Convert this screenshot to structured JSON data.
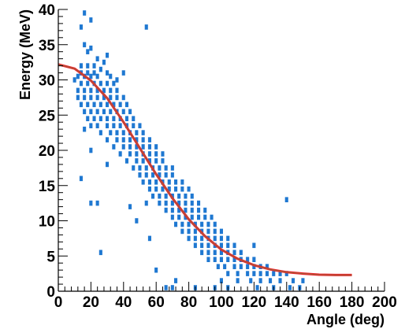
{
  "chart_data": {
    "type": "scatter",
    "title": "",
    "xlabel": "Angle (deg)",
    "ylabel": "Energy (MeV)",
    "xlim": [
      0,
      200
    ],
    "ylim": [
      0,
      40
    ],
    "x_ticks": [
      0,
      20,
      40,
      60,
      80,
      100,
      120,
      140,
      160,
      180,
      200
    ],
    "y_ticks": [
      0,
      5,
      10,
      15,
      20,
      25,
      30,
      35,
      40
    ],
    "grid": false,
    "legend": "none",
    "colors": {
      "points": "#1f78d1",
      "fit": "#e8202a",
      "fit_inner": "#3fbf4f",
      "axis": "#000000"
    },
    "bin_size": [
      2,
      0.4
    ],
    "fit_curve": {
      "name": "",
      "x": [
        0,
        10,
        20,
        30,
        40,
        50,
        60,
        70,
        80,
        90,
        100,
        110,
        120,
        130,
        140,
        150,
        160,
        170,
        180
      ],
      "y": [
        32.2,
        31.6,
        29.9,
        27.4,
        24.0,
        20.3,
        16.6,
        13.2,
        10.2,
        7.8,
        5.9,
        4.6,
        3.7,
        3.1,
        2.7,
        2.5,
        2.35,
        2.3,
        2.3
      ]
    },
    "series": [
      {
        "name": "",
        "points": [
          [
            16,
            39.5
          ],
          [
            14,
            37.5
          ],
          [
            20,
            38.5
          ],
          [
            16,
            35
          ],
          [
            20,
            34.5
          ],
          [
            18,
            34
          ],
          [
            24,
            33
          ],
          [
            28,
            32.5
          ],
          [
            54,
            37.5
          ],
          [
            14,
            32
          ],
          [
            18,
            32
          ],
          [
            22,
            32
          ],
          [
            26,
            31.5
          ],
          [
            14,
            31
          ],
          [
            18,
            31
          ],
          [
            22,
            31
          ],
          [
            30,
            31
          ],
          [
            12,
            30.5
          ],
          [
            16,
            30.5
          ],
          [
            20,
            30.5
          ],
          [
            24,
            30.5
          ],
          [
            32,
            30.5
          ],
          [
            36,
            30
          ],
          [
            14,
            29.5
          ],
          [
            18,
            29.5
          ],
          [
            22,
            29.5
          ],
          [
            26,
            29.5
          ],
          [
            30,
            29.5
          ],
          [
            34,
            29.5
          ],
          [
            12,
            28.5
          ],
          [
            16,
            28.5
          ],
          [
            20,
            28.5
          ],
          [
            24,
            28.5
          ],
          [
            28,
            28.5
          ],
          [
            32,
            28.5
          ],
          [
            36,
            28.5
          ],
          [
            12,
            27.5
          ],
          [
            16,
            27.5
          ],
          [
            20,
            27.5
          ],
          [
            24,
            27.5
          ],
          [
            28,
            27.5
          ],
          [
            32,
            27.5
          ],
          [
            36,
            27.5
          ],
          [
            40,
            27.5
          ],
          [
            14,
            26.5
          ],
          [
            18,
            26.5
          ],
          [
            22,
            26.5
          ],
          [
            26,
            26.5
          ],
          [
            30,
            26.5
          ],
          [
            34,
            26.5
          ],
          [
            38,
            26.5
          ],
          [
            42,
            26.5
          ],
          [
            16,
            25.5
          ],
          [
            20,
            25.5
          ],
          [
            24,
            25.5
          ],
          [
            28,
            25.5
          ],
          [
            32,
            25.5
          ],
          [
            36,
            25.5
          ],
          [
            40,
            25.5
          ],
          [
            44,
            25.5
          ],
          [
            18,
            24.5
          ],
          [
            22,
            24.5
          ],
          [
            26,
            24.5
          ],
          [
            30,
            24.5
          ],
          [
            34,
            24.5
          ],
          [
            38,
            24.5
          ],
          [
            42,
            24.5
          ],
          [
            46,
            24.5
          ],
          [
            20,
            23.5
          ],
          [
            24,
            23.5
          ],
          [
            30,
            23.5
          ],
          [
            34,
            23.5
          ],
          [
            38,
            23.5
          ],
          [
            42,
            23.5
          ],
          [
            46,
            23.5
          ],
          [
            50,
            23.5
          ],
          [
            16,
            23
          ],
          [
            26,
            22.5
          ],
          [
            32,
            22.5
          ],
          [
            36,
            22.5
          ],
          [
            40,
            22.5
          ],
          [
            44,
            22.5
          ],
          [
            48,
            22.5
          ],
          [
            52,
            22.5
          ],
          [
            30,
            21.5
          ],
          [
            36,
            21.5
          ],
          [
            40,
            21.5
          ],
          [
            44,
            21.5
          ],
          [
            48,
            21.5
          ],
          [
            52,
            21.5
          ],
          [
            56,
            21.5
          ],
          [
            34,
            20.5
          ],
          [
            40,
            20.5
          ],
          [
            44,
            20.5
          ],
          [
            48,
            20.5
          ],
          [
            52,
            20.5
          ],
          [
            56,
            20.5
          ],
          [
            60,
            20.5
          ],
          [
            20,
            20
          ],
          [
            38,
            19.5
          ],
          [
            44,
            19.5
          ],
          [
            48,
            19.5
          ],
          [
            52,
            19.5
          ],
          [
            56,
            19.5
          ],
          [
            60,
            19.5
          ],
          [
            64,
            19.5
          ],
          [
            42,
            18.5
          ],
          [
            48,
            18.5
          ],
          [
            52,
            18.5
          ],
          [
            56,
            18.5
          ],
          [
            60,
            18.5
          ],
          [
            64,
            18.5
          ],
          [
            30,
            18
          ],
          [
            46,
            17.5
          ],
          [
            50,
            17.5
          ],
          [
            54,
            17.5
          ],
          [
            58,
            17.5
          ],
          [
            62,
            17.5
          ],
          [
            66,
            17.5
          ],
          [
            70,
            17.5
          ],
          [
            50,
            16.5
          ],
          [
            54,
            16.5
          ],
          [
            58,
            16.5
          ],
          [
            62,
            16.5
          ],
          [
            66,
            16.5
          ],
          [
            70,
            16.5
          ],
          [
            14,
            16
          ],
          [
            52,
            15.5
          ],
          [
            56,
            15.5
          ],
          [
            60,
            15.5
          ],
          [
            64,
            15.5
          ],
          [
            68,
            15.5
          ],
          [
            72,
            15.5
          ],
          [
            76,
            15.5
          ],
          [
            56,
            14.5
          ],
          [
            60,
            14.5
          ],
          [
            64,
            14.5
          ],
          [
            68,
            14.5
          ],
          [
            72,
            14.5
          ],
          [
            76,
            14.5
          ],
          [
            80,
            14.5
          ],
          [
            58,
            13.5
          ],
          [
            62,
            13.5
          ],
          [
            66,
            13.5
          ],
          [
            70,
            13.5
          ],
          [
            74,
            13.5
          ],
          [
            78,
            13.5
          ],
          [
            82,
            13.5
          ],
          [
            20,
            12.5
          ],
          [
            24,
            12.5
          ],
          [
            62,
            12.5
          ],
          [
            66,
            12.5
          ],
          [
            70,
            12.5
          ],
          [
            74,
            12.5
          ],
          [
            78,
            12.5
          ],
          [
            82,
            12.5
          ],
          [
            86,
            12.5
          ],
          [
            44,
            12
          ],
          [
            66,
            11.5
          ],
          [
            70,
            11.5
          ],
          [
            74,
            11.5
          ],
          [
            78,
            11.5
          ],
          [
            82,
            11.5
          ],
          [
            86,
            11.5
          ],
          [
            90,
            11.5
          ],
          [
            70,
            10.5
          ],
          [
            74,
            10.5
          ],
          [
            78,
            10.5
          ],
          [
            82,
            10.5
          ],
          [
            86,
            10.5
          ],
          [
            90,
            10.5
          ],
          [
            94,
            10.5
          ],
          [
            48,
            10
          ],
          [
            72,
            9.5
          ],
          [
            76,
            9.5
          ],
          [
            80,
            9.5
          ],
          [
            84,
            9.5
          ],
          [
            88,
            9.5
          ],
          [
            92,
            9.5
          ],
          [
            96,
            9.5
          ],
          [
            76,
            8.5
          ],
          [
            80,
            8.5
          ],
          [
            84,
            8.5
          ],
          [
            88,
            8.5
          ],
          [
            92,
            8.5
          ],
          [
            96,
            8.5
          ],
          [
            100,
            8.5
          ],
          [
            56,
            7.5
          ],
          [
            80,
            7.5
          ],
          [
            84,
            7.5
          ],
          [
            88,
            7.5
          ],
          [
            92,
            7.5
          ],
          [
            96,
            7.5
          ],
          [
            100,
            7.5
          ],
          [
            104,
            7.5
          ],
          [
            84,
            6.5
          ],
          [
            88,
            6.5
          ],
          [
            92,
            6.5
          ],
          [
            96,
            6.5
          ],
          [
            100,
            6.5
          ],
          [
            104,
            6.5
          ],
          [
            108,
            6.5
          ],
          [
            26,
            5.5
          ],
          [
            88,
            5.5
          ],
          [
            92,
            5.5
          ],
          [
            96,
            5.5
          ],
          [
            100,
            5.5
          ],
          [
            104,
            5.5
          ],
          [
            108,
            5.5
          ],
          [
            112,
            5.5
          ],
          [
            120,
            6.5
          ],
          [
            92,
            4.5
          ],
          [
            96,
            4.5
          ],
          [
            100,
            4.5
          ],
          [
            104,
            4.5
          ],
          [
            108,
            4.5
          ],
          [
            112,
            4.5
          ],
          [
            116,
            4.5
          ],
          [
            120,
            4.5
          ],
          [
            98,
            3.5
          ],
          [
            102,
            3.5
          ],
          [
            108,
            3.5
          ],
          [
            112,
            3.5
          ],
          [
            116,
            3.5
          ],
          [
            120,
            3.5
          ],
          [
            124,
            3.5
          ],
          [
            128,
            3.5
          ],
          [
            60,
            3
          ],
          [
            104,
            2.5
          ],
          [
            110,
            2.5
          ],
          [
            116,
            2.5
          ],
          [
            120,
            2.5
          ],
          [
            124,
            2.5
          ],
          [
            128,
            2.5
          ],
          [
            132,
            2.5
          ],
          [
            136,
            2.5
          ],
          [
            140,
            2.5
          ],
          [
            100,
            1.5
          ],
          [
            110,
            1.5
          ],
          [
            118,
            1.5
          ],
          [
            124,
            1.5
          ],
          [
            130,
            1.5
          ],
          [
            136,
            1.5
          ],
          [
            144,
            1.5
          ],
          [
            150,
            1.5
          ],
          [
            72,
            1.5
          ],
          [
            66,
            0.5
          ],
          [
            70,
            0.5
          ],
          [
            84,
            0.5
          ],
          [
            96,
            0.5
          ],
          [
            104,
            0.5
          ],
          [
            122,
            0.5
          ],
          [
            132,
            0.5
          ],
          [
            142,
            0.5
          ],
          [
            148,
            0.5
          ],
          [
            140,
            13
          ],
          [
            54,
            12.5
          ],
          [
            40,
            31
          ],
          [
            10,
            30
          ],
          [
            30,
            33.5
          ]
        ]
      }
    ]
  }
}
